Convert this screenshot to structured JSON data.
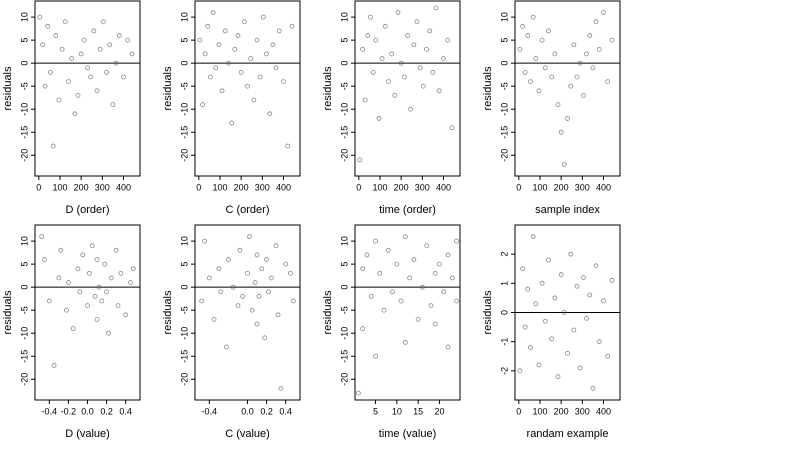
{
  "chart_data": [
    {
      "type": "scatter",
      "xlabel": "D (order)",
      "ylabel": "residuals",
      "xlim": [
        -18,
        478
      ],
      "ylim": [
        -24.5,
        13.5
      ],
      "xticks": [
        0,
        100,
        200,
        300,
        400
      ],
      "yticks": [
        -20,
        -15,
        -10,
        -5,
        0,
        5,
        10
      ],
      "hline": 0,
      "x": [
        5,
        18,
        30,
        42,
        55,
        68,
        80,
        95,
        110,
        125,
        140,
        155,
        170,
        185,
        200,
        215,
        230,
        245,
        260,
        275,
        290,
        305,
        320,
        335,
        350,
        365,
        380,
        400,
        420,
        440
      ],
      "values": [
        10,
        4,
        -5,
        8,
        -2,
        -18,
        6,
        -8,
        3,
        9,
        -4,
        1,
        -11,
        -7,
        2,
        5,
        -1,
        -3,
        7,
        -6,
        3,
        9,
        -2,
        4,
        -9,
        0,
        6,
        -3,
        5,
        2
      ]
    },
    {
      "type": "scatter",
      "xlabel": "C (order)",
      "ylabel": "residuals",
      "xlim": [
        -18,
        478
      ],
      "ylim": [
        -24.5,
        13.5
      ],
      "xticks": [
        0,
        100,
        200,
        300,
        400
      ],
      "yticks": [
        -20,
        -15,
        -10,
        -5,
        0,
        5,
        10
      ],
      "hline": 0,
      "x": [
        5,
        18,
        30,
        42,
        55,
        68,
        80,
        95,
        110,
        125,
        140,
        155,
        170,
        185,
        200,
        215,
        230,
        245,
        260,
        275,
        290,
        305,
        320,
        335,
        350,
        365,
        380,
        400,
        420,
        440
      ],
      "values": [
        5,
        -9,
        2,
        8,
        -3,
        11,
        -1,
        4,
        -6,
        7,
        0,
        -13,
        3,
        6,
        -2,
        9,
        -5,
        1,
        -8,
        5,
        -3,
        10,
        2,
        -11,
        4,
        -1,
        7,
        -4,
        -18,
        8
      ]
    },
    {
      "type": "scatter",
      "xlabel": "time (order)",
      "ylabel": "residuals",
      "xlim": [
        -18,
        478
      ],
      "ylim": [
        -24.5,
        13.5
      ],
      "xticks": [
        0,
        100,
        200,
        300,
        400
      ],
      "yticks": [
        -20,
        -15,
        -10,
        -5,
        0,
        5,
        10
      ],
      "hline": 0,
      "x": [
        5,
        18,
        30,
        42,
        55,
        68,
        80,
        95,
        110,
        125,
        140,
        155,
        170,
        185,
        200,
        215,
        230,
        245,
        260,
        275,
        290,
        305,
        320,
        335,
        350,
        365,
        380,
        400,
        420,
        440
      ],
      "values": [
        -21,
        3,
        -8,
        6,
        10,
        -2,
        5,
        -12,
        1,
        8,
        -4,
        2,
        -7,
        11,
        0,
        -3,
        6,
        -10,
        4,
        9,
        -1,
        -5,
        3,
        7,
        -2,
        12,
        -6,
        1,
        5,
        -14
      ]
    },
    {
      "type": "scatter",
      "xlabel": "sample index",
      "ylabel": "residuals",
      "xlim": [
        -18,
        478
      ],
      "ylim": [
        -24.5,
        13.5
      ],
      "xticks": [
        0,
        100,
        200,
        300,
        400
      ],
      "yticks": [
        -20,
        -15,
        -10,
        -5,
        0,
        5,
        10
      ],
      "hline": 0,
      "x": [
        5,
        18,
        30,
        42,
        55,
        68,
        80,
        95,
        110,
        125,
        140,
        155,
        170,
        185,
        200,
        215,
        230,
        245,
        260,
        275,
        290,
        305,
        320,
        335,
        350,
        365,
        380,
        400,
        420,
        440
      ],
      "values": [
        3,
        8,
        -2,
        6,
        -4,
        10,
        1,
        -6,
        5,
        -1,
        7,
        -3,
        2,
        -9,
        -15,
        -22,
        -12,
        -5,
        4,
        -3,
        0,
        -7,
        2,
        6,
        -1,
        9,
        3,
        11,
        -4,
        5
      ]
    },
    {
      "type": "scatter",
      "xlabel": "D (value)",
      "ylabel": "residuals",
      "xlim": [
        -0.55,
        0.55
      ],
      "ylim": [
        -24.5,
        13.5
      ],
      "xticks": [
        -0.4,
        -0.2,
        {
          "value": 0,
          "label": "0.0"
        },
        0.2,
        0.4
      ],
      "yticks": [
        -20,
        -15,
        -10,
        -5,
        0,
        5,
        10
      ],
      "hline": 0,
      "x": [
        -0.48,
        -0.45,
        -0.4,
        -0.35,
        -0.3,
        -0.28,
        -0.22,
        -0.2,
        -0.15,
        -0.1,
        -0.08,
        -0.05,
        0,
        0.02,
        0.05,
        0.08,
        0.1,
        0.1,
        0.12,
        0.15,
        0.18,
        0.2,
        0.22,
        0.25,
        0.3,
        0.32,
        0.35,
        0.4,
        0.45,
        0.48
      ],
      "values": [
        11,
        6,
        -3,
        -17,
        2,
        8,
        -5,
        1,
        -9,
        4,
        -1,
        7,
        -4,
        3,
        9,
        -2,
        6,
        -7,
        0,
        -3,
        5,
        -1,
        -10,
        2,
        8,
        -4,
        3,
        -6,
        1,
        4
      ]
    },
    {
      "type": "scatter",
      "xlabel": "C (value)",
      "ylabel": "residuals",
      "xlim": [
        -0.55,
        0.55
      ],
      "ylim": [
        -24.5,
        13.5
      ],
      "xticks": [
        -0.4,
        {
          "value": 0,
          "label": "0.0"
        },
        0.2,
        0.4
      ],
      "yticks": [
        -20,
        -15,
        -10,
        -5,
        0,
        5,
        10
      ],
      "hline": 0,
      "x": [
        -0.48,
        -0.45,
        -0.4,
        -0.35,
        -0.3,
        -0.28,
        -0.22,
        -0.2,
        -0.15,
        -0.1,
        -0.08,
        -0.05,
        0,
        0.02,
        0.05,
        0.08,
        0.1,
        0.1,
        0.12,
        0.15,
        0.18,
        0.2,
        0.22,
        0.25,
        0.3,
        0.32,
        0.35,
        0.4,
        0.45,
        0.48
      ],
      "values": [
        -3,
        10,
        2,
        -7,
        4,
        -1,
        -13,
        6,
        0,
        -4,
        8,
        -2,
        3,
        11,
        -5,
        1,
        -8,
        7,
        -2,
        4,
        -11,
        6,
        -1,
        2,
        9,
        -6,
        -22,
        5,
        3,
        -3
      ]
    },
    {
      "type": "scatter",
      "xlabel": "time (value)",
      "ylabel": "residuals",
      "xlim": [
        0.2,
        24.8
      ],
      "ylim": [
        -24.5,
        13.5
      ],
      "xticks": [
        5,
        10,
        15,
        20
      ],
      "yticks": [
        -20,
        -15,
        -10,
        -5,
        0,
        5,
        10
      ],
      "hline": 0,
      "x": [
        1,
        2,
        2,
        3,
        4,
        5,
        5,
        6,
        7,
        8,
        9,
        10,
        11,
        12,
        12,
        13,
        14,
        15,
        16,
        17,
        18,
        19,
        19,
        20,
        21,
        22,
        22,
        23,
        24,
        24
      ],
      "values": [
        -23,
        4,
        -9,
        7,
        -2,
        10,
        -15,
        3,
        -5,
        8,
        -1,
        5,
        -3,
        11,
        -12,
        2,
        6,
        -7,
        0,
        9,
        -4,
        3,
        -8,
        5,
        -1,
        7,
        -13,
        2,
        10,
        -3
      ]
    },
    {
      "type": "scatter",
      "xlabel": "randam example",
      "ylabel": "residuals",
      "xlim": [
        -18,
        478
      ],
      "ylim": [
        -3,
        3
      ],
      "xticks": [
        0,
        100,
        200,
        300,
        400
      ],
      "yticks": [
        -2,
        -1,
        0,
        1,
        2
      ],
      "hline": 0,
      "x": [
        5,
        18,
        30,
        42,
        55,
        68,
        80,
        95,
        110,
        125,
        140,
        155,
        170,
        185,
        200,
        215,
        230,
        245,
        260,
        275,
        290,
        305,
        320,
        335,
        350,
        365,
        380,
        400,
        420,
        440
      ],
      "values": [
        -2,
        1.5,
        -0.5,
        0.8,
        -1.2,
        2.6,
        0.3,
        -1.8,
        1,
        -0.3,
        1.8,
        -0.9,
        0.5,
        -2.2,
        1.3,
        0,
        -1.4,
        2,
        -0.6,
        0.9,
        -1.9,
        1.2,
        -0.2,
        0.6,
        -2.6,
        1.6,
        -1,
        0.4,
        -1.5,
        1.1
      ]
    }
  ]
}
